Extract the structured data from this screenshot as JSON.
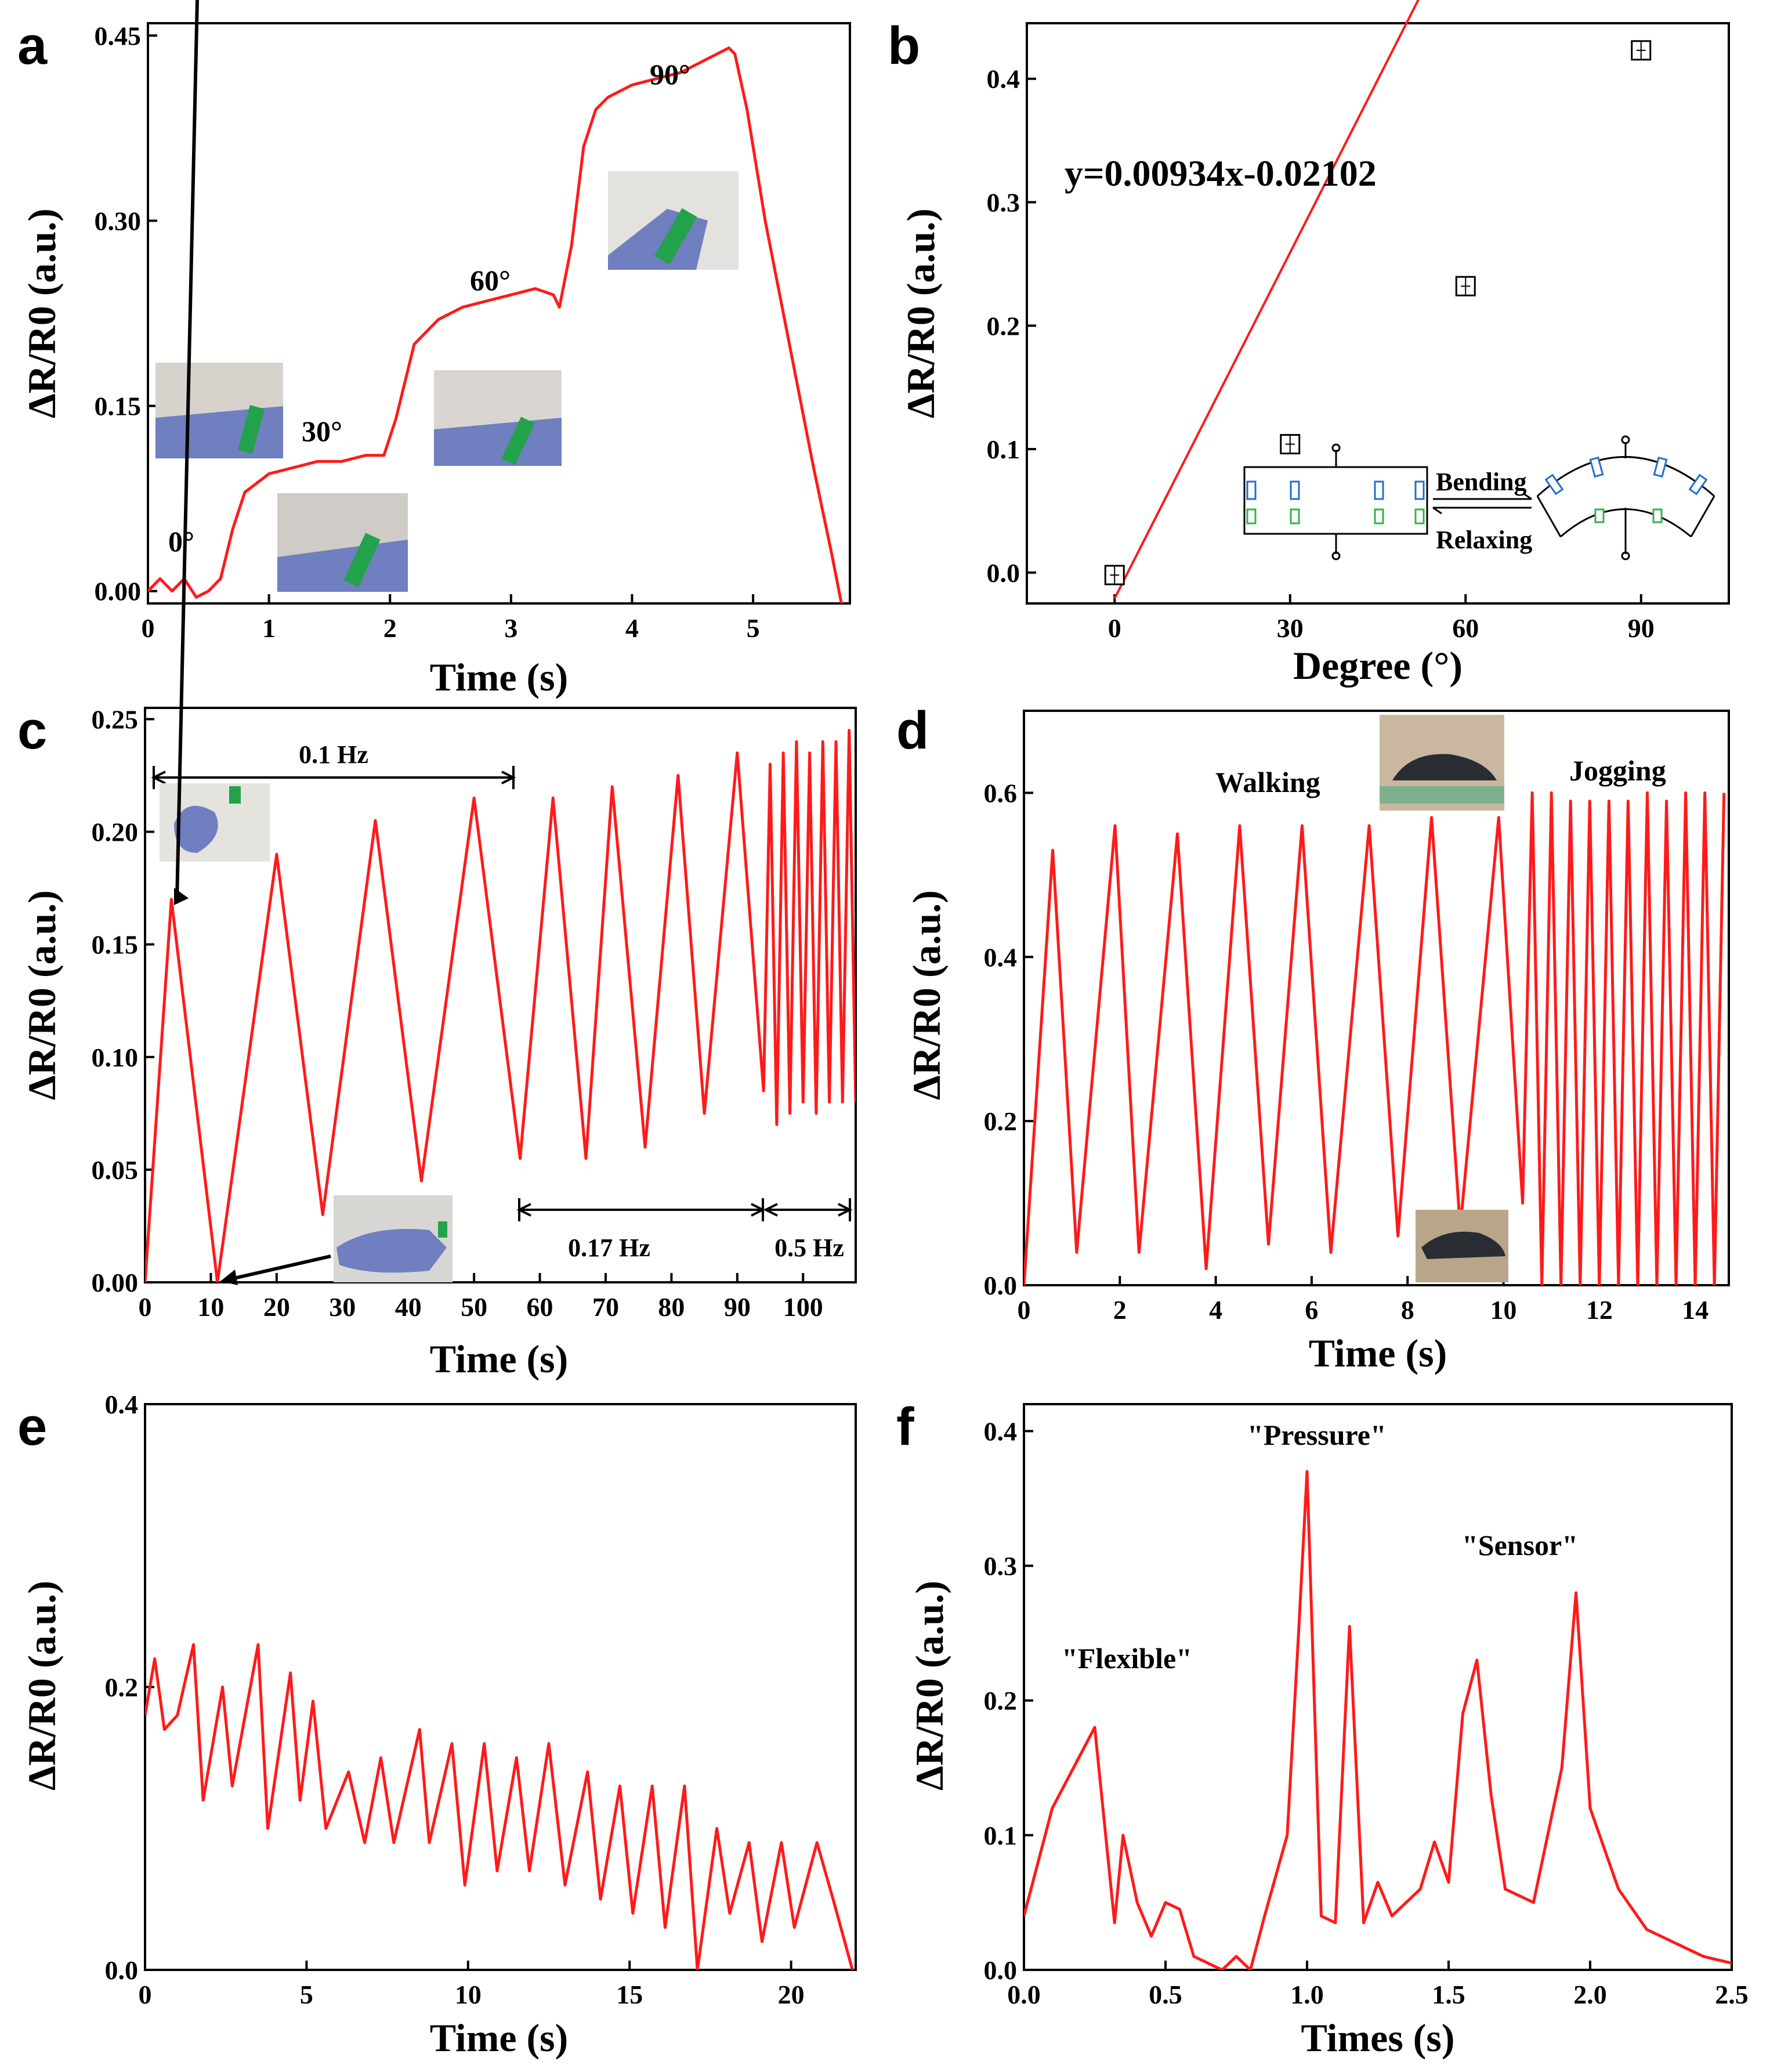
{
  "colors": {
    "data": "#ff1a1a",
    "axis": "#000000"
  },
  "panels": {
    "a": {
      "letter": "a",
      "xticks": [
        "0",
        "1",
        "2",
        "3",
        "4",
        "5"
      ],
      "yticks": [
        "0.00",
        "0.15",
        "0.30",
        "0.45"
      ],
      "xlabel": "Time (s)",
      "ylabel": "ΔR/R0 (a.u.)",
      "annotations": [
        "0°",
        "30°",
        "60°",
        "90°"
      ]
    },
    "b": {
      "letter": "b",
      "xticks": [
        "0",
        "30",
        "60",
        "90"
      ],
      "yticks": [
        "0.0",
        "0.1",
        "0.2",
        "0.3",
        "0.4"
      ],
      "xlabel": "Degree (°)",
      "ylabel": "ΔR/R0 (a.u.)",
      "equation": "y=0.00934x-0.02102",
      "inset_bending": "Bending",
      "inset_relaxing": "Relaxing"
    },
    "c": {
      "letter": "c",
      "xticks": [
        "0",
        "10",
        "20",
        "30",
        "40",
        "50",
        "60",
        "70",
        "80",
        "90",
        "100"
      ],
      "yticks": [
        "0.00",
        "0.05",
        "0.10",
        "0.15",
        "0.20",
        "0.25"
      ],
      "xlabel": "Time (s)",
      "ylabel": "ΔR/R0 (a.u.)",
      "freq_labels": [
        "0.1 Hz",
        "0.17 Hz",
        "0.5 Hz"
      ]
    },
    "d": {
      "letter": "d",
      "xticks": [
        "0",
        "2",
        "4",
        "6",
        "8",
        "10",
        "12",
        "14"
      ],
      "yticks": [
        "0.0",
        "0.2",
        "0.4",
        "0.6"
      ],
      "xlabel": "Time (s)",
      "ylabel": "ΔR/R0 (a.u.)",
      "annotations": [
        "Walking",
        "Jogging"
      ]
    },
    "e": {
      "letter": "e",
      "xticks": [
        "0",
        "5",
        "10",
        "15",
        "20"
      ],
      "yticks": [
        "0.0",
        "0.2",
        "0.4"
      ],
      "xlabel": "Time (s)",
      "ylabel": "ΔR/R0 (a.u.)"
    },
    "f": {
      "letter": "f",
      "xticks": [
        "0.0",
        "0.5",
        "1.0",
        "1.5",
        "2.0",
        "2.5"
      ],
      "yticks": [
        "0.0",
        "0.1",
        "0.2",
        "0.3",
        "0.4"
      ],
      "xlabel": "Times (s)",
      "ylabel": "ΔR/R0 (a.u.)",
      "annotations": [
        "\"Flexible\"",
        "\"Pressure\"",
        "\"Sensor\""
      ]
    }
  },
  "chart_data": [
    {
      "panel": "a",
      "type": "line",
      "xlabel": "Time (s)",
      "ylabel": "ΔR/R0 (a.u.)",
      "xlim": [
        0,
        5.8
      ],
      "ylim": [
        -0.01,
        0.46
      ],
      "x": [
        0,
        0.1,
        0.2,
        0.3,
        0.4,
        0.5,
        0.6,
        0.7,
        0.8,
        1.0,
        1.2,
        1.4,
        1.6,
        1.8,
        1.95,
        2.05,
        2.2,
        2.4,
        2.6,
        2.8,
        3.0,
        3.2,
        3.35,
        3.4,
        3.5,
        3.6,
        3.7,
        3.8,
        4.0,
        4.2,
        4.4,
        4.6,
        4.8,
        4.85,
        4.95,
        5.1,
        5.3,
        5.5,
        5.65,
        5.75
      ],
      "y": [
        0.0,
        0.01,
        0.0,
        0.01,
        -0.005,
        0.0,
        0.01,
        0.05,
        0.08,
        0.095,
        0.1,
        0.105,
        0.105,
        0.11,
        0.11,
        0.14,
        0.2,
        0.22,
        0.23,
        0.235,
        0.24,
        0.245,
        0.24,
        0.23,
        0.28,
        0.36,
        0.39,
        0.4,
        0.41,
        0.415,
        0.42,
        0.43,
        0.44,
        0.435,
        0.39,
        0.3,
        0.2,
        0.1,
        0.03,
        -0.02
      ]
    },
    {
      "panel": "b",
      "type": "scatter",
      "xlabel": "Degree (°)",
      "ylabel": "ΔR/R0 (a.u.)",
      "xlim": [
        -15,
        105
      ],
      "ylim": [
        -0.025,
        0.445
      ],
      "x": [
        0,
        30,
        60,
        90
      ],
      "y": [
        -0.002,
        0.104,
        0.232,
        0.423
      ],
      "fit": {
        "slope": 0.00934,
        "intercept": -0.02102,
        "x_range": [
          0,
          90
        ]
      }
    },
    {
      "panel": "c",
      "type": "line",
      "xlabel": "Time (s)",
      "ylabel": "ΔR/R0 (a.u.)",
      "xlim": [
        0,
        108
      ],
      "ylim": [
        0,
        0.255
      ],
      "x": [
        0,
        4,
        11,
        20,
        27,
        35,
        42,
        50,
        57,
        62,
        67,
        71,
        76,
        81,
        85,
        90,
        94,
        95,
        96,
        97,
        98,
        99,
        100,
        101,
        102,
        103,
        104,
        105,
        106,
        107,
        108
      ],
      "y": [
        0.0,
        0.17,
        0.0,
        0.19,
        0.03,
        0.205,
        0.045,
        0.215,
        0.055,
        0.215,
        0.055,
        0.22,
        0.06,
        0.225,
        0.075,
        0.235,
        0.085,
        0.23,
        0.07,
        0.235,
        0.075,
        0.24,
        0.08,
        0.235,
        0.075,
        0.24,
        0.08,
        0.24,
        0.08,
        0.245,
        0.08
      ]
    },
    {
      "panel": "d",
      "type": "line",
      "xlabel": "Time (s)",
      "ylabel": "ΔR/R0 (a.u.)",
      "xlim": [
        0,
        14.7
      ],
      "ylim": [
        0,
        0.7
      ],
      "x": [
        0,
        0.6,
        1.1,
        1.9,
        2.4,
        3.2,
        3.8,
        4.5,
        5.1,
        5.8,
        6.4,
        7.2,
        7.8,
        8.5,
        9.1,
        9.9,
        10.4,
        10.6,
        10.8,
        11.0,
        11.2,
        11.4,
        11.6,
        11.8,
        12.0,
        12.2,
        12.4,
        12.6,
        12.8,
        13.0,
        13.2,
        13.4,
        13.6,
        13.8,
        14.0,
        14.2,
        14.4,
        14.6
      ],
      "y": [
        0.0,
        0.53,
        0.04,
        0.56,
        0.04,
        0.55,
        0.02,
        0.56,
        0.05,
        0.56,
        0.04,
        0.56,
        0.06,
        0.57,
        0.07,
        0.57,
        0.1,
        0.6,
        0.0,
        0.6,
        0.0,
        0.59,
        0.0,
        0.59,
        0.0,
        0.59,
        0.0,
        0.59,
        0.0,
        0.6,
        0.0,
        0.59,
        0.0,
        0.6,
        0.0,
        0.6,
        0.0,
        0.6
      ]
    },
    {
      "panel": "e",
      "type": "line",
      "xlabel": "Time (s)",
      "ylabel": "ΔR/R0 (a.u.)",
      "xlim": [
        0,
        22
      ],
      "ylim": [
        0,
        0.4
      ],
      "x": [
        0,
        0.3,
        0.6,
        1.0,
        1.5,
        1.8,
        2.4,
        2.7,
        3.5,
        3.8,
        4.5,
        4.8,
        5.2,
        5.6,
        6.3,
        6.8,
        7.3,
        7.7,
        8.5,
        8.8,
        9.5,
        9.9,
        10.5,
        10.9,
        11.5,
        11.9,
        12.5,
        13.0,
        13.7,
        14.1,
        14.7,
        15.1,
        15.7,
        16.1,
        16.7,
        17.1,
        17.7,
        18.1,
        18.7,
        19.1,
        19.7,
        20.1,
        20.8,
        21.3,
        21.9
      ],
      "y": [
        0.18,
        0.22,
        0.17,
        0.18,
        0.23,
        0.12,
        0.2,
        0.13,
        0.23,
        0.1,
        0.21,
        0.12,
        0.19,
        0.1,
        0.14,
        0.09,
        0.15,
        0.09,
        0.17,
        0.09,
        0.16,
        0.06,
        0.16,
        0.07,
        0.15,
        0.07,
        0.16,
        0.06,
        0.14,
        0.05,
        0.13,
        0.04,
        0.13,
        0.03,
        0.13,
        0.0,
        0.1,
        0.04,
        0.09,
        0.02,
        0.09,
        0.03,
        0.09,
        0.05,
        0.0
      ]
    },
    {
      "panel": "f",
      "type": "line",
      "xlabel": "Times (s)",
      "ylabel": "ΔR/R0 (a.u.)",
      "xlim": [
        0,
        2.5
      ],
      "ylim": [
        0,
        0.42
      ],
      "x": [
        0,
        0.1,
        0.25,
        0.32,
        0.35,
        0.4,
        0.45,
        0.5,
        0.55,
        0.6,
        0.7,
        0.75,
        0.8,
        0.85,
        0.93,
        0.97,
        1.0,
        1.05,
        1.1,
        1.15,
        1.2,
        1.25,
        1.3,
        1.4,
        1.45,
        1.5,
        1.55,
        1.6,
        1.65,
        1.7,
        1.8,
        1.9,
        1.95,
        2.0,
        2.1,
        2.2,
        2.3,
        2.4,
        2.5
      ],
      "y": [
        0.04,
        0.12,
        0.18,
        0.035,
        0.1,
        0.05,
        0.025,
        0.05,
        0.045,
        0.01,
        0.0,
        0.01,
        0.0,
        0.04,
        0.1,
        0.25,
        0.37,
        0.04,
        0.035,
        0.255,
        0.035,
        0.065,
        0.04,
        0.06,
        0.095,
        0.065,
        0.19,
        0.23,
        0.13,
        0.06,
        0.05,
        0.15,
        0.28,
        0.12,
        0.06,
        0.03,
        0.02,
        0.01,
        0.005
      ]
    }
  ]
}
